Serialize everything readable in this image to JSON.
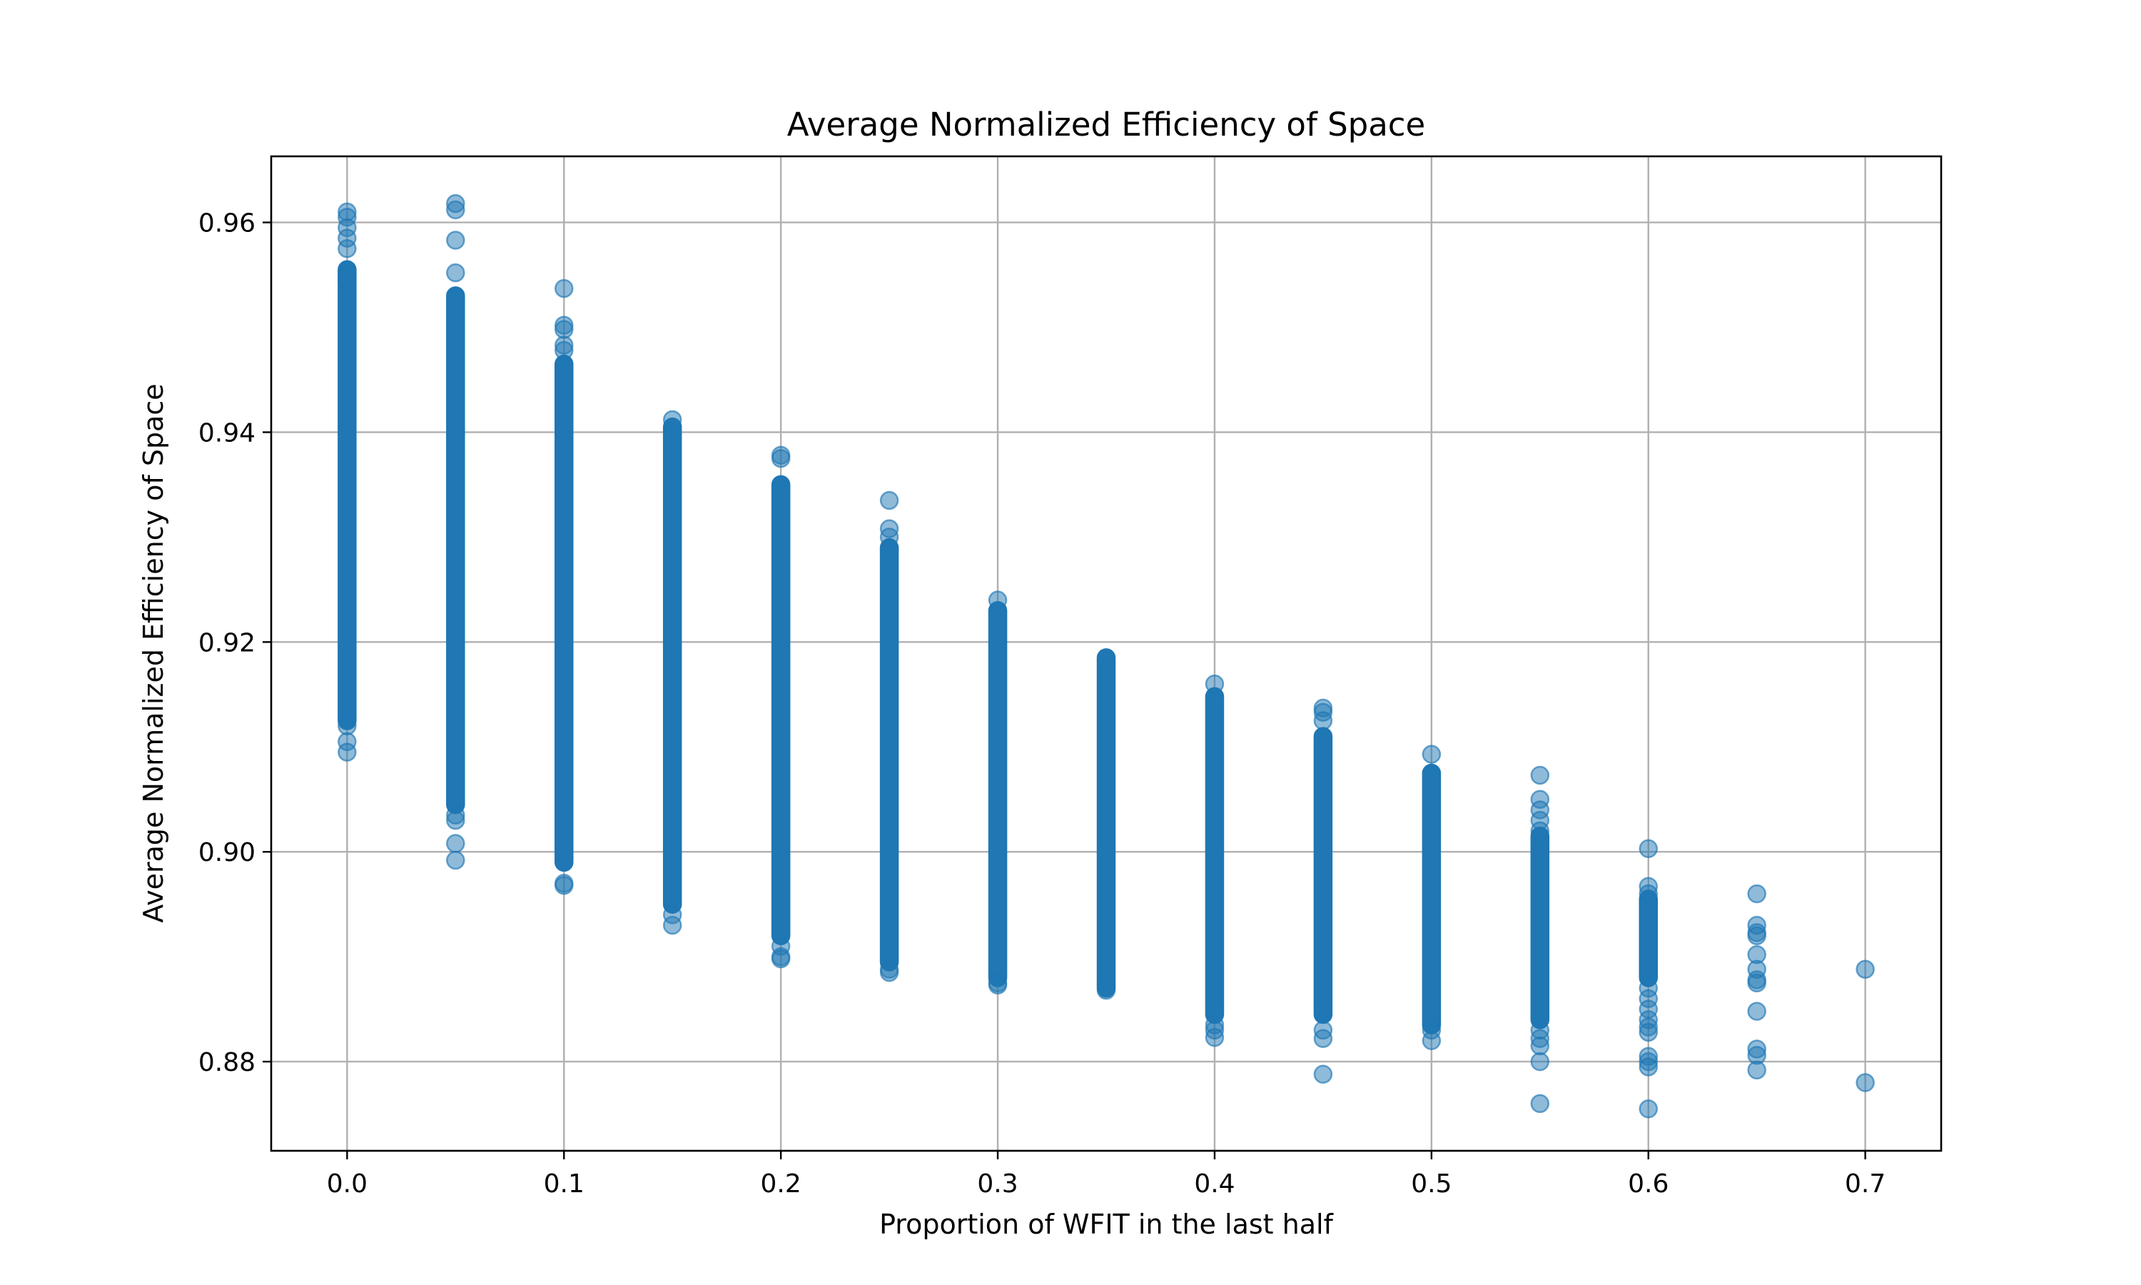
{
  "chart_data": {
    "type": "scatter",
    "title": "Average Normalized Efficiency of Space",
    "xlabel": "Proportion of WFIT in the last half",
    "ylabel": "Average Normalized Efficiency of Space",
    "xlim": [
      -0.035,
      0.735
    ],
    "ylim": [
      0.8715,
      0.9663
    ],
    "xticks": [
      0.0,
      0.1,
      0.2,
      0.3,
      0.4,
      0.5,
      0.6,
      0.7
    ],
    "xtick_labels": [
      "0.0",
      "0.1",
      "0.2",
      "0.3",
      "0.4",
      "0.5",
      "0.6",
      "0.7"
    ],
    "yticks": [
      0.88,
      0.9,
      0.92,
      0.94,
      0.96
    ],
    "ytick_labels": [
      "0.88",
      "0.90",
      "0.92",
      "0.94",
      "0.96"
    ],
    "grid": true,
    "marker_color": "#1f77b4",
    "marker_alpha": 0.5,
    "groups": [
      {
        "x": 0.0,
        "dense": [
          0.9125,
          0.9555
        ],
        "outliers": [
          0.961,
          0.9605,
          0.9595,
          0.9585,
          0.9575,
          0.955,
          0.9545,
          0.912,
          0.9105,
          0.9095
        ]
      },
      {
        "x": 0.05,
        "dense": [
          0.9045,
          0.953
        ],
        "outliers": [
          0.9618,
          0.9612,
          0.9583,
          0.9552,
          0.9035,
          0.903,
          0.9008,
          0.8992
        ]
      },
      {
        "x": 0.1,
        "dense": [
          0.899,
          0.9465
        ],
        "outliers": [
          0.9537,
          0.9502,
          0.9498,
          0.9483,
          0.9478,
          0.897,
          0.8968
        ]
      },
      {
        "x": 0.15,
        "dense": [
          0.895,
          0.9405
        ],
        "outliers": [
          0.9412,
          0.894,
          0.893
        ]
      },
      {
        "x": 0.2,
        "dense": [
          0.892,
          0.935
        ],
        "outliers": [
          0.9378,
          0.9375,
          0.891,
          0.89,
          0.8898
        ]
      },
      {
        "x": 0.25,
        "dense": [
          0.8895,
          0.929
        ],
        "outliers": [
          0.9335,
          0.9308,
          0.93,
          0.8888,
          0.8885
        ]
      },
      {
        "x": 0.3,
        "dense": [
          0.888,
          0.923
        ],
        "outliers": [
          0.924,
          0.8875,
          0.8873
        ]
      },
      {
        "x": 0.35,
        "dense": [
          0.887,
          0.9185
        ],
        "outliers": [
          0.8868
        ]
      },
      {
        "x": 0.4,
        "dense": [
          0.8845,
          0.9148
        ],
        "outliers": [
          0.916,
          0.8835,
          0.883,
          0.8823
        ]
      },
      {
        "x": 0.45,
        "dense": [
          0.8845,
          0.911
        ],
        "outliers": [
          0.9137,
          0.9133,
          0.9125,
          0.883,
          0.8822,
          0.8788
        ]
      },
      {
        "x": 0.5,
        "dense": [
          0.8835,
          0.9075
        ],
        "outliers": [
          0.9093,
          0.883,
          0.882
        ]
      },
      {
        "x": 0.55,
        "dense": [
          0.884,
          0.9015
        ],
        "outliers": [
          0.9073,
          0.905,
          0.904,
          0.903,
          0.902,
          0.883,
          0.8822,
          0.8815,
          0.88,
          0.876
        ]
      },
      {
        "x": 0.6,
        "dense": [
          0.888,
          0.8955
        ],
        "outliers": [
          0.9003,
          0.8967,
          0.896,
          0.887,
          0.886,
          0.885,
          0.884,
          0.8833,
          0.8828,
          0.8805,
          0.88,
          0.8795,
          0.8755
        ]
      },
      {
        "x": 0.65,
        "dense": [],
        "outliers": [
          0.896,
          0.893,
          0.8923,
          0.892,
          0.8902,
          0.8888,
          0.8878,
          0.8875,
          0.8848,
          0.8812,
          0.8806,
          0.8792
        ]
      },
      {
        "x": 0.7,
        "dense": [],
        "outliers": [
          0.8888,
          0.878
        ]
      }
    ]
  }
}
